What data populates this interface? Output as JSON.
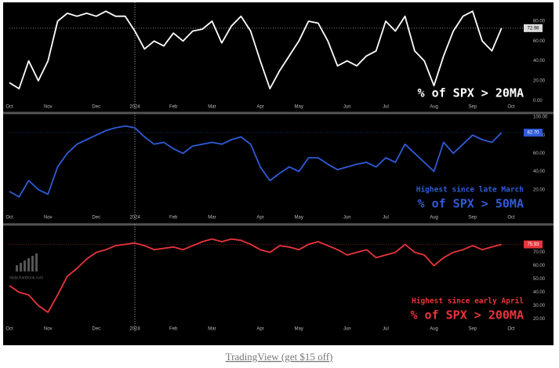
{
  "chart_data": [
    {
      "type": "line",
      "title": "% of SPX > 20MA",
      "categories": [
        "Oct",
        null,
        null,
        null,
        "Nov",
        null,
        null,
        null,
        null,
        "Dec",
        null,
        null,
        null,
        "2024",
        null,
        null,
        null,
        "Feb",
        null,
        null,
        null,
        "Mar",
        null,
        null,
        null,
        null,
        "Apr",
        null,
        null,
        null,
        "May",
        null,
        null,
        null,
        null,
        "Jun",
        null,
        null,
        null,
        "Jul",
        null,
        null,
        null,
        null,
        "Aug",
        null,
        null,
        null,
        "Sep",
        null,
        null,
        null,
        "Oct"
      ],
      "series": [
        {
          "name": "% of SPX > 20MA",
          "color": "#ffffff",
          "values": [
            18,
            12,
            40,
            20,
            40,
            80,
            88,
            85,
            88,
            85,
            90,
            85,
            85,
            70,
            52,
            60,
            55,
            68,
            60,
            70,
            72,
            80,
            58,
            75,
            85,
            70,
            40,
            12,
            30,
            45,
            60,
            80,
            78,
            60,
            35,
            40,
            35,
            45,
            50,
            80,
            70,
            85,
            50,
            40,
            15,
            45,
            70,
            85,
            90,
            60,
            50,
            72.98,
            null
          ]
        }
      ],
      "ylim": [
        -3,
        95
      ],
      "yticks": [
        {
          "value": 0,
          "label": "0.00"
        },
        {
          "value": 20,
          "label": "20.00"
        },
        {
          "value": 40,
          "label": "40.00"
        },
        {
          "value": 60,
          "label": "60.00"
        },
        {
          "value": 80,
          "label": "80.00"
        }
      ]
    },
    {
      "type": "line",
      "title": "% of SPX > 50MA",
      "annotation": "Highest since late March",
      "categories": [
        "Oct",
        null,
        null,
        null,
        "Nov",
        null,
        null,
        null,
        null,
        "Dec",
        null,
        null,
        null,
        "2024",
        null,
        null,
        null,
        "Feb",
        null,
        null,
        null,
        "Mar",
        null,
        null,
        null,
        null,
        "Apr",
        null,
        null,
        null,
        "May",
        null,
        null,
        null,
        null,
        "Jun",
        null,
        null,
        null,
        "Jul",
        null,
        null,
        null,
        null,
        "Aug",
        null,
        null,
        null,
        "Sep",
        null,
        null,
        null,
        "Oct"
      ],
      "series": [
        {
          "name": "% of SPX > 50MA",
          "color": "#2f5bd8",
          "values": [
            18,
            12,
            30,
            20,
            15,
            45,
            60,
            70,
            75,
            80,
            85,
            88,
            90,
            88,
            78,
            70,
            72,
            65,
            60,
            68,
            70,
            72,
            70,
            75,
            78,
            70,
            45,
            30,
            38,
            45,
            40,
            55,
            55,
            48,
            42,
            45,
            48,
            50,
            45,
            55,
            50,
            70,
            60,
            50,
            40,
            72,
            60,
            70,
            80,
            75,
            72,
            82.7,
            null
          ],
          "value_labels": [
            null,
            null,
            null,
            null,
            null,
            null,
            null,
            null,
            null,
            null,
            null,
            null,
            null,
            null,
            null,
            null,
            null,
            null,
            null,
            null,
            null,
            null,
            null,
            null,
            null,
            null,
            null,
            null,
            null,
            null,
            null,
            null,
            null,
            null,
            null,
            null,
            null,
            null,
            null,
            null,
            null,
            null,
            null,
            null,
            null,
            null,
            null,
            null,
            null,
            null,
            null,
            "82.70",
            null
          ]
        }
      ],
      "ylim": [
        -7,
        100
      ],
      "yticks": [
        {
          "value": 20,
          "label": "20.00"
        },
        {
          "value": 40,
          "label": "40.00"
        },
        {
          "value": 60,
          "label": "60.00"
        },
        {
          "value": 80,
          "label": "80.00"
        },
        {
          "value": 100,
          "label": "100.00"
        }
      ]
    },
    {
      "type": "line",
      "title": "% of SPX > 200MA",
      "annotation": "Highest since early April",
      "watermark": "dailychartbook.com",
      "categories": [
        "Oct",
        null,
        null,
        null,
        "Nov",
        null,
        null,
        null,
        null,
        "Dec",
        null,
        null,
        null,
        "2024",
        null,
        null,
        null,
        "Feb",
        null,
        null,
        null,
        "Mar",
        null,
        null,
        null,
        null,
        "Apr",
        null,
        null,
        null,
        "May",
        null,
        null,
        null,
        null,
        "Jun",
        null,
        null,
        null,
        "Jul",
        null,
        null,
        null,
        null,
        "Aug",
        null,
        null,
        null,
        "Sep",
        null,
        null,
        null,
        "Oct"
      ],
      "series": [
        {
          "name": "% of SPX > 200MA",
          "color": "#e8343c",
          "values": [
            45,
            40,
            38,
            30,
            25,
            38,
            52,
            58,
            65,
            70,
            72,
            75,
            76,
            77,
            75,
            72,
            73,
            74,
            72,
            75,
            78,
            80,
            78,
            80,
            79,
            76,
            72,
            70,
            75,
            74,
            72,
            76,
            78,
            75,
            72,
            68,
            70,
            72,
            66,
            68,
            70,
            76,
            70,
            68,
            60,
            66,
            70,
            72,
            75,
            72,
            74,
            75.93,
            null
          ]
        }
      ],
      "ylim": [
        15,
        88
      ],
      "yticks": [
        {
          "value": 20,
          "label": "20.00"
        },
        {
          "value": 30,
          "label": "30.00"
        },
        {
          "value": 40,
          "label": "40.00"
        },
        {
          "value": 50,
          "label": "50.00"
        },
        {
          "value": 60,
          "label": "60.00"
        },
        {
          "value": 70,
          "label": "70.00"
        }
      ]
    }
  ],
  "footer": "TradingView (get $15 off)"
}
